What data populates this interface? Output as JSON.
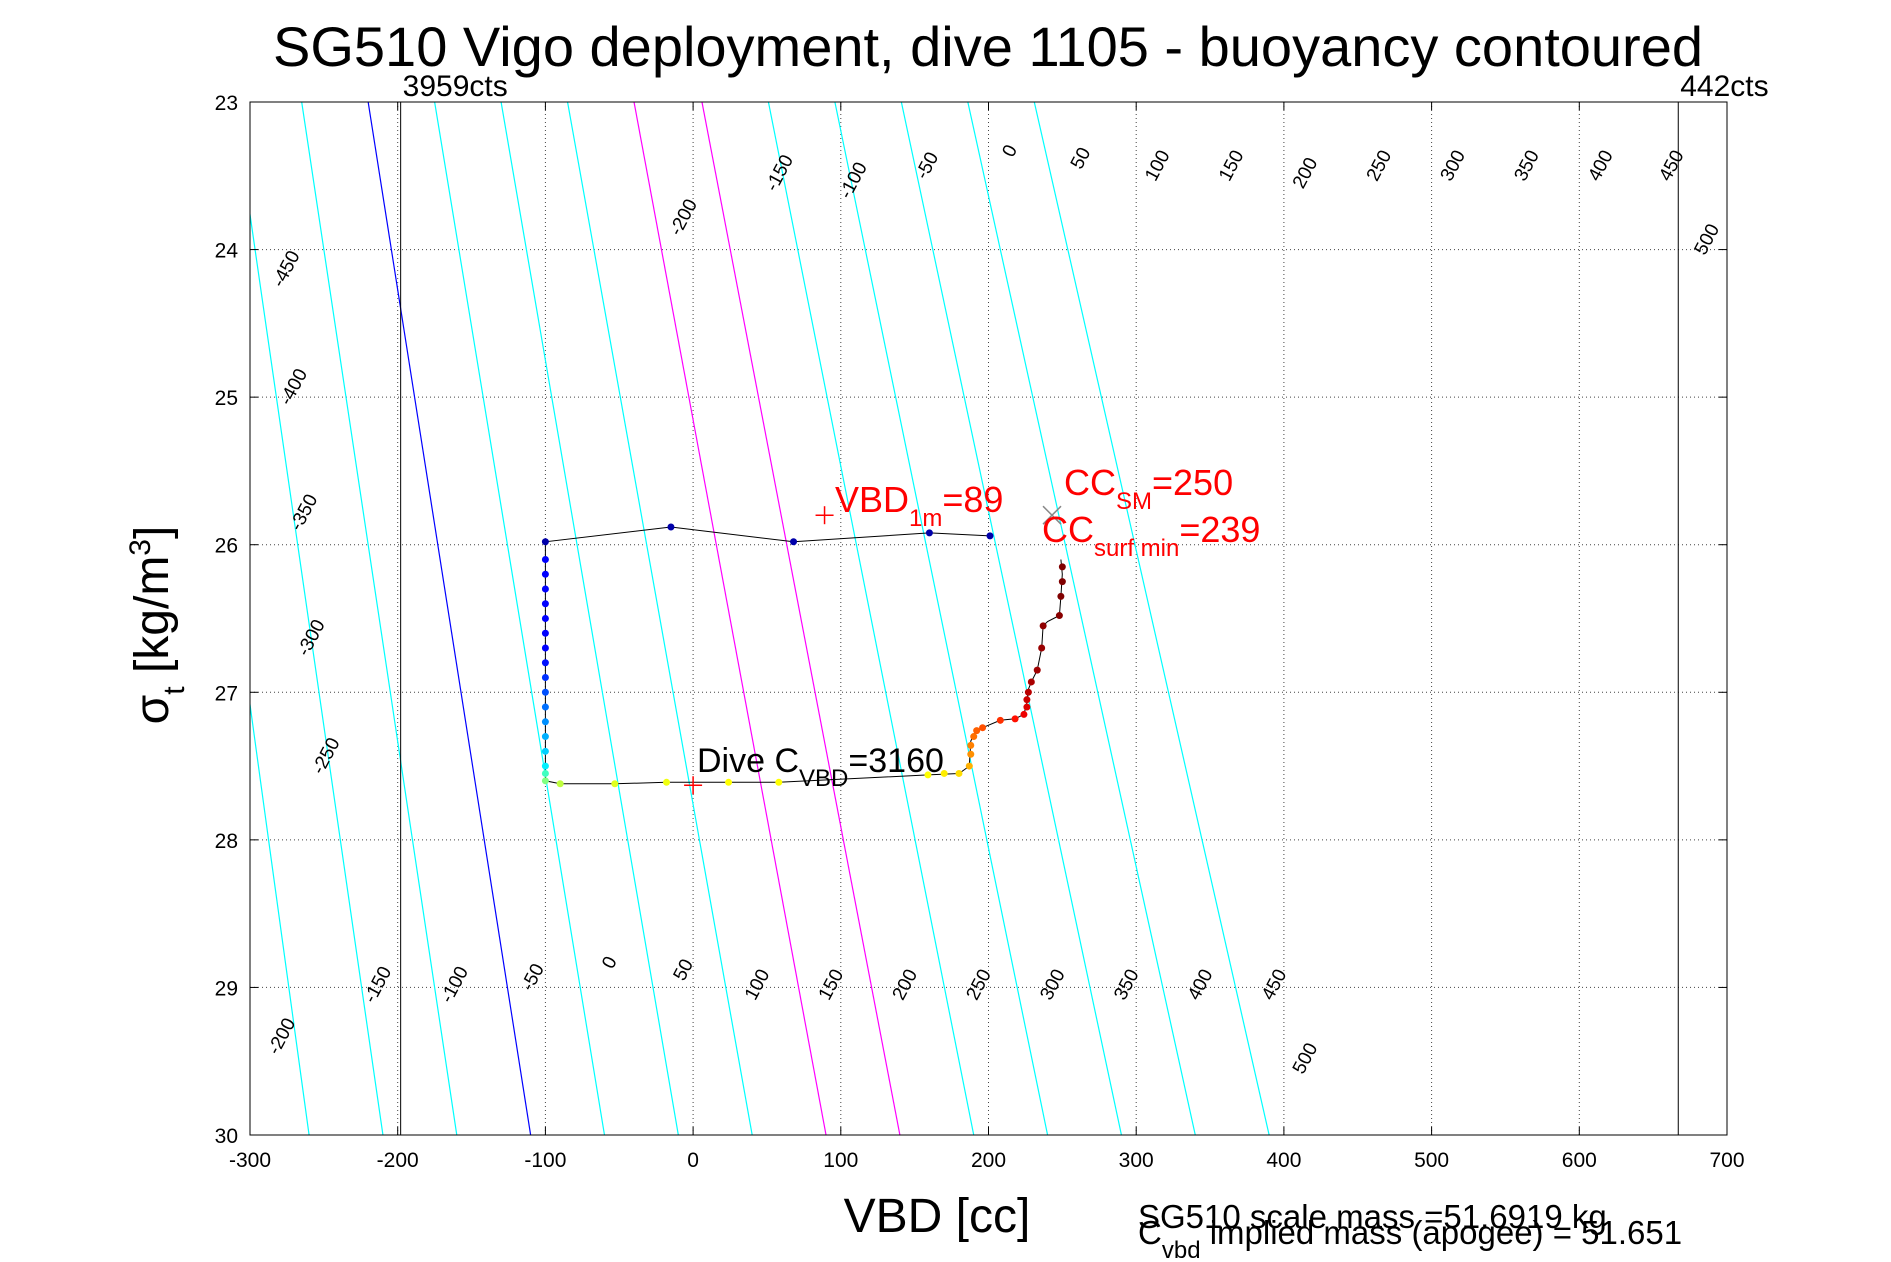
{
  "chart_data": {
    "type": "scatter",
    "title": "SG510 Vigo deployment, dive 1105 - buoyancy contoured",
    "xlabel": "VBD [cc]",
    "ylabel_main": "σ",
    "ylabel_sub": "t",
    "ylabel_rest": " [kg/m",
    "ylabel_sup": "3",
    "ylabel_end": "]",
    "xlim": [
      -300,
      700
    ],
    "ylim": [
      23,
      30
    ],
    "y_reversed": true,
    "grid": true,
    "xticks": [
      -300,
      -200,
      -100,
      0,
      100,
      200,
      300,
      400,
      500,
      600,
      700
    ],
    "yticks": [
      23,
      24,
      25,
      26,
      27,
      28,
      29,
      30
    ],
    "buoyancy_contours": {
      "levels": [
        -450,
        -400,
        -350,
        -300,
        -250,
        -200,
        -150,
        -100,
        -50,
        0,
        50,
        100,
        150,
        200,
        250,
        300,
        350,
        400,
        450,
        500
      ],
      "line_color": "#00ffff",
      "zero_color": "#0000ff",
      "highlight_color": "#ff00ff",
      "highlight_levels": [
        200,
        250
      ],
      "sigma_lo": 23,
      "sigma_hi": 30,
      "vbd_at_sigma_lo": [
        -627,
        -582,
        -536,
        -491,
        -446,
        -401,
        -356,
        -311,
        -265,
        -220,
        -175,
        -130,
        -85,
        -40,
        6,
        51,
        96,
        141,
        186,
        231
      ],
      "vbd_at_sigma_hi": [
        -560,
        -510,
        -460,
        -410,
        -360,
        -310,
        -260,
        -210,
        -160,
        -110,
        -60,
        -10,
        40,
        90,
        140,
        190,
        240,
        290,
        340,
        390
      ],
      "top_labels": [
        {
          "level": -200,
          "vbd": -3,
          "sigma": 23.8
        },
        {
          "level": -150,
          "vbd": 62,
          "sigma": 23.5
        },
        {
          "level": -100,
          "vbd": 112,
          "sigma": 23.55
        },
        {
          "level": -50,
          "vbd": 162,
          "sigma": 23.45
        },
        {
          "level": 0,
          "vbd": 218,
          "sigma": 23.35
        },
        {
          "level": 50,
          "vbd": 266,
          "sigma": 23.4
        },
        {
          "level": 100,
          "vbd": 318,
          "sigma": 23.45
        },
        {
          "level": 150,
          "vbd": 368,
          "sigma": 23.45
        },
        {
          "level": 200,
          "vbd": 418,
          "sigma": 23.5
        },
        {
          "level": 250,
          "vbd": 468,
          "sigma": 23.45
        },
        {
          "level": 300,
          "vbd": 518,
          "sigma": 23.45
        },
        {
          "level": 350,
          "vbd": 568,
          "sigma": 23.45
        },
        {
          "level": 400,
          "vbd": 618,
          "sigma": 23.45
        },
        {
          "level": 450,
          "vbd": 666,
          "sigma": 23.45
        },
        {
          "level": 500,
          "vbd": 690,
          "sigma": 23.95
        }
      ],
      "left_labels": [
        {
          "level": -450,
          "vbd": -272,
          "sigma": 24.15
        },
        {
          "level": -400,
          "vbd": -267,
          "sigma": 24.95
        },
        {
          "level": -350,
          "vbd": -260,
          "sigma": 25.8
        },
        {
          "level": -300,
          "vbd": -255,
          "sigma": 26.65
        },
        {
          "level": -250,
          "vbd": -245,
          "sigma": 27.45
        }
      ],
      "bottom_labels": [
        {
          "level": -200,
          "vbd": -275,
          "sigma": 29.35
        },
        {
          "level": -150,
          "vbd": -210,
          "sigma": 29.0
        },
        {
          "level": -100,
          "vbd": -158,
          "sigma": 29.0
        },
        {
          "level": -50,
          "vbd": -105,
          "sigma": 28.95
        },
        {
          "level": 0,
          "vbd": -53,
          "sigma": 28.85
        },
        {
          "level": 50,
          "vbd": -3,
          "sigma": 28.9
        },
        {
          "level": 100,
          "vbd": 47,
          "sigma": 29.0
        },
        {
          "level": 150,
          "vbd": 97,
          "sigma": 29.0
        },
        {
          "level": 200,
          "vbd": 147,
          "sigma": 29.0
        },
        {
          "level": 250,
          "vbd": 197,
          "sigma": 29.0
        },
        {
          "level": 300,
          "vbd": 247,
          "sigma": 29.0
        },
        {
          "level": 350,
          "vbd": 297,
          "sigma": 29.0
        },
        {
          "level": 400,
          "vbd": 347,
          "sigma": 29.0
        },
        {
          "level": 450,
          "vbd": 397,
          "sigma": 29.0
        },
        {
          "level": 500,
          "vbd": 418,
          "sigma": 29.5
        }
      ]
    },
    "vertical_lines": [
      {
        "vbd": -198,
        "label": "3959cts",
        "anchor": "start"
      },
      {
        "vbd": 667,
        "label": "442cts",
        "anchor": "start"
      }
    ],
    "profile_path": [
      [
        201,
        25.94
      ],
      [
        160,
        25.92
      ],
      [
        68,
        25.98
      ],
      [
        -15,
        25.88
      ],
      [
        -100,
        25.98
      ],
      [
        -100,
        26.1
      ],
      [
        -100,
        26.4
      ],
      [
        -100,
        26.8
      ],
      [
        -100,
        27.2
      ],
      [
        -100,
        27.6
      ],
      [
        -90,
        27.62
      ],
      [
        -53,
        27.62
      ],
      [
        -18,
        27.61
      ],
      [
        24,
        27.61
      ],
      [
        58,
        27.61
      ],
      [
        159,
        27.56
      ],
      [
        180,
        27.55
      ],
      [
        187,
        27.5
      ],
      [
        188,
        27.33
      ],
      [
        191,
        27.27
      ],
      [
        196,
        27.24
      ],
      [
        208,
        27.19
      ],
      [
        218,
        27.18
      ],
      [
        224,
        27.15
      ],
      [
        226,
        27.07
      ],
      [
        227,
        26.98
      ],
      [
        229,
        26.93
      ],
      [
        233,
        26.85
      ],
      [
        236,
        26.7
      ],
      [
        237,
        26.55
      ],
      [
        240,
        26.52
      ],
      [
        248,
        26.48
      ],
      [
        249,
        26.35
      ],
      [
        250,
        26.2
      ],
      [
        249,
        26.1
      ]
    ],
    "points": [
      {
        "vbd": 201,
        "sigma": 25.94,
        "color": "#0000aa"
      },
      {
        "vbd": 160,
        "sigma": 25.92,
        "color": "#0000aa"
      },
      {
        "vbd": 68,
        "sigma": 25.98,
        "color": "#0000aa"
      },
      {
        "vbd": -15,
        "sigma": 25.88,
        "color": "#0000aa"
      },
      {
        "vbd": -100,
        "sigma": 25.98,
        "color": "#0000aa"
      },
      {
        "vbd": -100,
        "sigma": 26.1,
        "color": "#0000ff"
      },
      {
        "vbd": -100,
        "sigma": 26.2,
        "color": "#0000ff"
      },
      {
        "vbd": -100,
        "sigma": 26.3,
        "color": "#0000ff"
      },
      {
        "vbd": -100,
        "sigma": 26.4,
        "color": "#0000ff"
      },
      {
        "vbd": -100,
        "sigma": 26.5,
        "color": "#0000ff"
      },
      {
        "vbd": -100,
        "sigma": 26.6,
        "color": "#0000ff"
      },
      {
        "vbd": -100,
        "sigma": 26.7,
        "color": "#0000ff"
      },
      {
        "vbd": -100,
        "sigma": 26.8,
        "color": "#0010ff"
      },
      {
        "vbd": -100,
        "sigma": 26.9,
        "color": "#0030ff"
      },
      {
        "vbd": -100,
        "sigma": 27.0,
        "color": "#0050ff"
      },
      {
        "vbd": -100,
        "sigma": 27.1,
        "color": "#0070ff"
      },
      {
        "vbd": -100,
        "sigma": 27.2,
        "color": "#0090ff"
      },
      {
        "vbd": -100,
        "sigma": 27.3,
        "color": "#00b0ff"
      },
      {
        "vbd": -100,
        "sigma": 27.4,
        "color": "#00d0ff"
      },
      {
        "vbd": -100,
        "sigma": 27.5,
        "color": "#00f0ff"
      },
      {
        "vbd": -100,
        "sigma": 27.55,
        "color": "#40ffc0"
      },
      {
        "vbd": -100,
        "sigma": 27.6,
        "color": "#80ff80"
      },
      {
        "vbd": -90,
        "sigma": 27.62,
        "color": "#c0ff40"
      },
      {
        "vbd": -53,
        "sigma": 27.62,
        "color": "#e0ff20"
      },
      {
        "vbd": -18,
        "sigma": 27.61,
        "color": "#f0ff10"
      },
      {
        "vbd": 24,
        "sigma": 27.61,
        "color": "#ffff00"
      },
      {
        "vbd": 58,
        "sigma": 27.61,
        "color": "#ffff00"
      },
      {
        "vbd": 159,
        "sigma": 27.56,
        "color": "#ffff00"
      },
      {
        "vbd": 170,
        "sigma": 27.55,
        "color": "#ffee00"
      },
      {
        "vbd": 180,
        "sigma": 27.55,
        "color": "#ffdd00"
      },
      {
        "vbd": 187,
        "sigma": 27.5,
        "color": "#ffb000"
      },
      {
        "vbd": 188,
        "sigma": 27.42,
        "color": "#ff9000"
      },
      {
        "vbd": 188,
        "sigma": 27.36,
        "color": "#ff8000"
      },
      {
        "vbd": 190,
        "sigma": 27.3,
        "color": "#ff7000"
      },
      {
        "vbd": 192,
        "sigma": 27.26,
        "color": "#ff6000"
      },
      {
        "vbd": 196,
        "sigma": 27.24,
        "color": "#ff5000"
      },
      {
        "vbd": 208,
        "sigma": 27.19,
        "color": "#ff3000"
      },
      {
        "vbd": 218,
        "sigma": 27.18,
        "color": "#ff1000"
      },
      {
        "vbd": 224,
        "sigma": 27.15,
        "color": "#ee0000"
      },
      {
        "vbd": 226,
        "sigma": 27.1,
        "color": "#dd0000"
      },
      {
        "vbd": 226,
        "sigma": 27.05,
        "color": "#cc0000"
      },
      {
        "vbd": 227,
        "sigma": 27.0,
        "color": "#bb0000"
      },
      {
        "vbd": 229,
        "sigma": 26.93,
        "color": "#aa0000"
      },
      {
        "vbd": 233,
        "sigma": 26.85,
        "color": "#a00000"
      },
      {
        "vbd": 236,
        "sigma": 26.7,
        "color": "#990000"
      },
      {
        "vbd": 237,
        "sigma": 26.55,
        "color": "#900000"
      },
      {
        "vbd": 248,
        "sigma": 26.48,
        "color": "#880000"
      },
      {
        "vbd": 249,
        "sigma": 26.35,
        "color": "#800000"
      },
      {
        "vbd": 250,
        "sigma": 26.25,
        "color": "#800000"
      },
      {
        "vbd": 250,
        "sigma": 26.15,
        "color": "#800000"
      }
    ],
    "markers": [
      {
        "type": "plus",
        "vbd": 89,
        "sigma": 25.8,
        "color": "#ff0000"
      },
      {
        "type": "cross",
        "vbd": 243,
        "sigma": 25.8,
        "color": "#888888"
      },
      {
        "type": "plus",
        "vbd": 0,
        "sigma": 27.63,
        "color": "#ff0000"
      }
    ],
    "annotations": {
      "vbd1m": {
        "pre": "VBD",
        "sub": "1m",
        "post": "=89"
      },
      "ccsm": {
        "pre": "CC",
        "sub": "SM",
        "post": "=250"
      },
      "ccsurf": {
        "pre": "CC",
        "sub": "surf min",
        "post": "=239"
      },
      "dive": {
        "pre": "Dive C",
        "sub": "VBD",
        "post": "=3160"
      }
    },
    "footer": {
      "scale_mass": "SG510 scale mass =51.6919 kg",
      "implied_pre": "C",
      "implied_sub": "vbd",
      "implied_post": " implied mass (apogee) = 51.651"
    }
  }
}
